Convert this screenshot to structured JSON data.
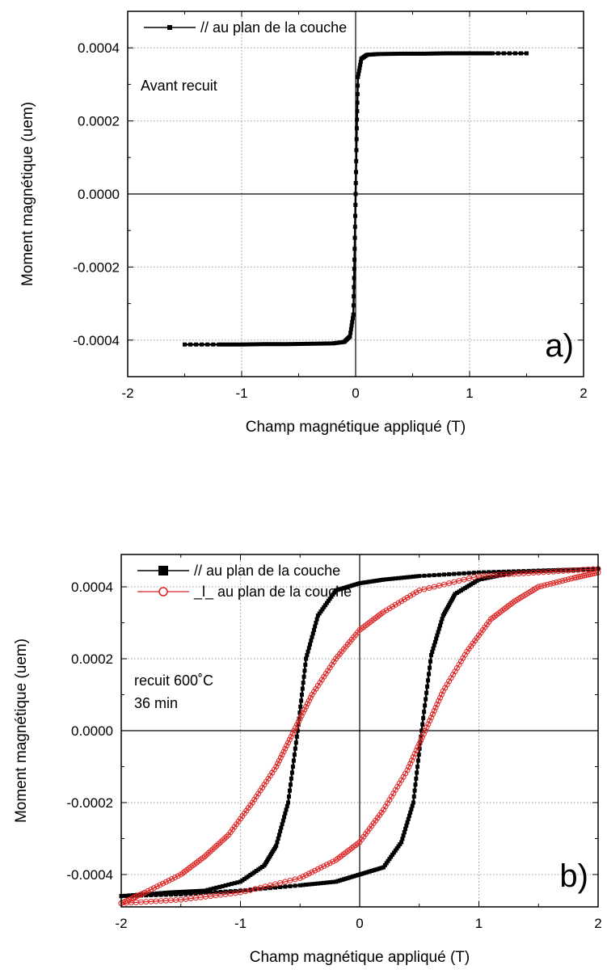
{
  "chart_data": [
    {
      "type": "line",
      "panel_label": "a)",
      "annotation": [
        "Avant recuit"
      ],
      "xlabel": "Champ magnétique appliqué (T)",
      "ylabel": "Moment magnétique (uem)",
      "xlim": [
        -2,
        2
      ],
      "ylim": [
        -0.0005,
        0.0005
      ],
      "x_ticks": [
        "-2",
        "-1",
        "0",
        "1",
        "2"
      ],
      "y_ticks": [
        "-0.0004",
        "-0.0002",
        "0.0000",
        "0.0002",
        "0.0004"
      ],
      "grid": true,
      "legend_position": "top-left",
      "series": [
        {
          "name": "// au plan de la couche",
          "color": "#000000",
          "marker": "square",
          "x": [
            -1.5,
            -1.2,
            -1.0,
            -0.8,
            -0.6,
            -0.4,
            -0.2,
            -0.1,
            -0.05,
            -0.02,
            -0.01,
            0.0,
            0.01,
            0.02,
            0.05,
            0.1,
            0.2,
            0.4,
            0.6,
            0.8,
            1.0,
            1.2,
            1.5
          ],
          "y": [
            -0.000412,
            -0.000412,
            -0.000412,
            -0.000411,
            -0.000411,
            -0.00041,
            -0.000409,
            -0.000405,
            -0.00039,
            -0.00033,
            -0.00018,
            0.0,
            0.00018,
            0.00032,
            0.00037,
            0.000381,
            0.000383,
            0.000384,
            0.000384,
            0.000385,
            0.000385,
            0.000385,
            0.000385
          ]
        }
      ]
    },
    {
      "type": "line",
      "panel_label": "b)",
      "annotation": [
        "recuit 600˚C",
        "36 min"
      ],
      "xlabel": "Champ magnétique appliqué (T)",
      "ylabel": "Moment magnétique (uem)",
      "xlim": [
        -2,
        2
      ],
      "ylim": [
        -0.00049,
        0.00049
      ],
      "x_ticks": [
        "-2",
        "-1",
        "0",
        "1",
        "2"
      ],
      "y_ticks": [
        "-0.0004",
        "-0.0002",
        "0.0000",
        "0.0002",
        "0.0004"
      ],
      "grid": true,
      "legend_position": "top-left",
      "series": [
        {
          "name": "// au plan de la couche",
          "color": "#000000",
          "marker": "square",
          "descending_branch": {
            "x": [
              2.0,
              1.5,
              1.0,
              0.5,
              0.2,
              0.0,
              -0.2,
              -0.35,
              -0.45,
              -0.52,
              -0.6,
              -0.7,
              -0.8,
              -1.0,
              -1.3,
              -1.6,
              -2.0
            ],
            "y": [
              0.00045,
              0.000445,
              0.00044,
              0.00043,
              0.00042,
              0.00041,
              0.00039,
              0.00032,
              0.0002,
              0.0,
              -0.0002,
              -0.00032,
              -0.000375,
              -0.00042,
              -0.000445,
              -0.00045,
              -0.00046
            ]
          },
          "ascending_branch": {
            "x": [
              -2.0,
              -1.5,
              -1.0,
              -0.5,
              -0.2,
              0.0,
              0.2,
              0.35,
              0.45,
              0.52,
              0.6,
              0.7,
              0.8,
              1.0,
              1.3,
              1.6,
              2.0
            ],
            "y": [
              -0.00046,
              -0.000455,
              -0.000445,
              -0.00043,
              -0.00042,
              -0.0004,
              -0.00038,
              -0.00031,
              -0.0002,
              0.0,
              0.00021,
              0.00032,
              0.00038,
              0.00042,
              0.00044,
              0.000445,
              0.00045
            ]
          }
        },
        {
          "name": "_l_ au plan de la couche",
          "color": "#dd2222",
          "marker": "open-circle",
          "descending_branch": {
            "x": [
              2.0,
              1.5,
              1.0,
              0.5,
              0.2,
              0.0,
              -0.2,
              -0.4,
              -0.55,
              -0.7,
              -0.9,
              -1.1,
              -1.3,
              -1.5,
              -1.8,
              -2.0
            ],
            "y": [
              0.00045,
              0.00044,
              0.00043,
              0.00039,
              0.00033,
              0.00028,
              0.0002,
              0.0001,
              0.0,
              -0.0001,
              -0.0002,
              -0.00029,
              -0.00035,
              -0.0004,
              -0.00045,
              -0.00048
            ]
          },
          "ascending_branch": {
            "x": [
              -2.0,
              -1.5,
              -1.0,
              -0.5,
              -0.2,
              0.0,
              0.2,
              0.4,
              0.55,
              0.7,
              0.9,
              1.1,
              1.3,
              1.5,
              1.8,
              2.0
            ],
            "y": [
              -0.00048,
              -0.00047,
              -0.00045,
              -0.00041,
              -0.00036,
              -0.00031,
              -0.00022,
              -0.00011,
              0.0,
              0.00011,
              0.00022,
              0.00031,
              0.00036,
              0.0004,
              0.000425,
              0.00044
            ]
          }
        }
      ]
    }
  ]
}
